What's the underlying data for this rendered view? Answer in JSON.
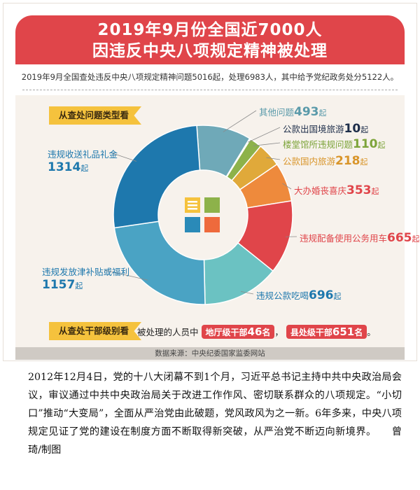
{
  "header": {
    "title_line1": "2019年9月份全国近7000人",
    "title_line2": "因违反中央八项规定精神被处理"
  },
  "subtitle": "2019年9月全国查处违反中央八项规定精神问题5016起，处理6983人，其中给予党纪政务处分5122人。",
  "section1_tag": "从查处问题类型看",
  "section2_tag": "从查处干部级别看",
  "bottom": {
    "prefix": "被处理的人员中",
    "p1_name": "地厅级干部",
    "p1_value": "46",
    "p1_unit": "名",
    "sep": "，",
    "p2_name": "县处级干部",
    "p2_value": "651",
    "p2_unit": "名",
    "end": "。",
    "p1_color": "#e0454a",
    "p2_color": "#e0454a"
  },
  "source": "数据来源：中央纪委国家监委网站",
  "paragraph": "2012年12月4日，党的十八大闭幕不到1个月，习近平总书记主持中共中央政治局会议，审议通过中共中央政治局关于改进工作作风、密切联系群众的八项规定。“小切口”推动“大变局”，全面从严治党由此破题，党风政风为之一新。6年多来，中央八项规定见证了党的建设在制度方面不断取得新突破，从严治党不断迈向新境界。　　曾琦/制图",
  "chart_data": {
    "type": "pie",
    "unit": "起",
    "categories": [
      "其他问题",
      "公款出国境旅游",
      "楼堂馆所违规问题",
      "公款国内旅游",
      "大办婚丧喜庆",
      "违规配备使用公务用车",
      "违规公款吃喝",
      "违规发放津补贴或福利",
      "违规收送礼品礼金"
    ],
    "values": [
      493,
      10,
      110,
      218,
      353,
      665,
      696,
      1157,
      1314
    ],
    "colors": [
      "#6fa9b8",
      "#1e2e4a",
      "#8db24a",
      "#e0a93a",
      "#ee8a3c",
      "#e0454a",
      "#6bc2c2",
      "#4aa3c4",
      "#1e78ad"
    ],
    "label_colors": [
      "#5a9aaa",
      "#1e2e4a",
      "#7da43a",
      "#d9952a",
      "#e0454a",
      "#e0454a",
      "#1e78ad",
      "#1e78ad",
      "#1e78ad"
    ]
  }
}
